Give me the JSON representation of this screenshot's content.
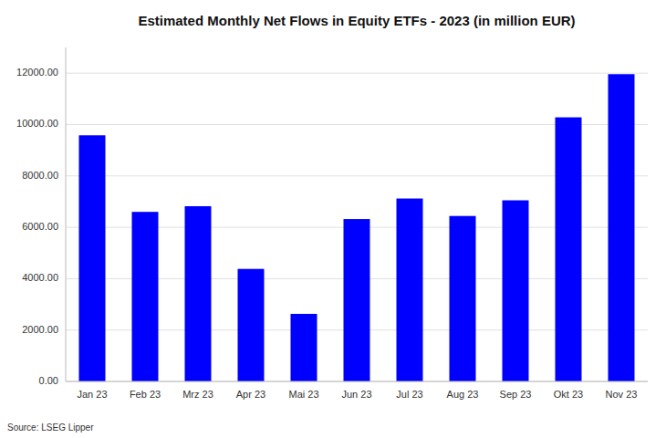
{
  "chart_data": {
    "type": "bar",
    "title": "Estimated Monthly Net Flows in Equity ETFs - 2023 (in million EUR)",
    "categories": [
      "Jan 23",
      "Feb 23",
      "Mrz 23",
      "Apr 23",
      "Mai 23",
      "Jun 23",
      "Jul 23",
      "Aug 23",
      "Sep 23",
      "Okt 23",
      "Nov 23"
    ],
    "values": [
      9580,
      6600,
      6820,
      4380,
      2630,
      6320,
      7120,
      6440,
      7050,
      10280,
      11960
    ],
    "color": "#0000FF",
    "ylim": [
      0,
      13000
    ],
    "yticks": [
      {
        "value": 0,
        "label": "0.00"
      },
      {
        "value": 2000,
        "label": "2000.00"
      },
      {
        "value": 4000,
        "label": "4000.00"
      },
      {
        "value": 6000,
        "label": "6000.00"
      },
      {
        "value": 8000,
        "label": "8000.00"
      },
      {
        "value": 10000,
        "label": "10000.00"
      },
      {
        "value": 12000,
        "label": "12000.00"
      }
    ],
    "grid": true,
    "annotations": [
      "Source: LSEG Lipper"
    ]
  }
}
